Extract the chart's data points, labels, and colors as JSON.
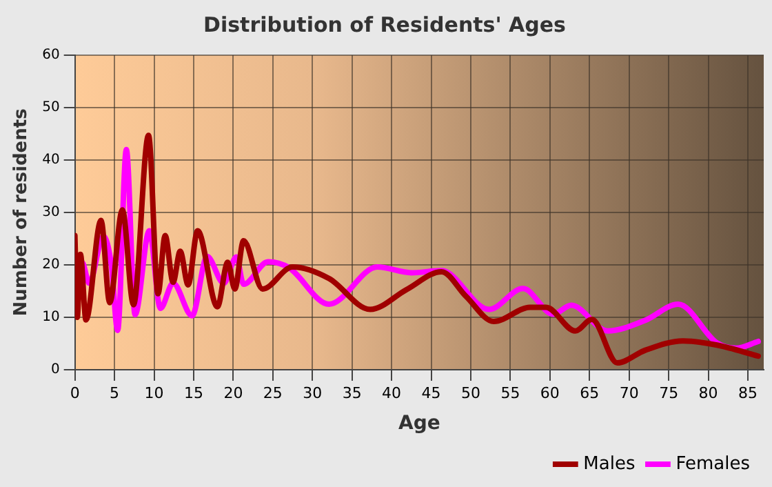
{
  "chart_data": {
    "type": "line",
    "title": "Distribution of Residents' Ages",
    "xlabel": "Age",
    "ylabel": "Number of residents",
    "xlim": [
      0,
      87
    ],
    "xticks": [
      0,
      5,
      10,
      15,
      20,
      25,
      30,
      35,
      40,
      45,
      50,
      55,
      60,
      65,
      70,
      75,
      80,
      85
    ],
    "ylim": [
      0,
      60
    ],
    "yticks": [
      0,
      10,
      20,
      30,
      40,
      50,
      60
    ],
    "grid": true,
    "legend": "bottom right",
    "marker": "none",
    "line_style": "solid",
    "series": [
      {
        "name": "Males",
        "color": "#a00000",
        "x": [
          0,
          0.3,
          0.7,
          1.4,
          3.3,
          4.4,
          6,
          7.4,
          9.3,
          10.5,
          11.4,
          12.4,
          13.3,
          14.3,
          15.5,
          18,
          19.3,
          20.2,
          21.3,
          23.7,
          27.5,
          32.1,
          37.3,
          41.9,
          46.3,
          49.4,
          52.9,
          57.5,
          59.5,
          63.2,
          65.3,
          68.5,
          72,
          76.8,
          81.1,
          86.3
        ],
        "values": [
          25.6,
          10,
          22,
          9.5,
          28.5,
          12.8,
          30.5,
          12.4,
          44.7,
          14.5,
          25.6,
          16.7,
          22.6,
          16.2,
          26.5,
          12,
          20.5,
          15.4,
          24.6,
          15.4,
          19.6,
          17.4,
          11.5,
          15.3,
          18.7,
          14,
          9.2,
          11.9,
          11.9,
          7.4,
          9.6,
          1.3,
          3.7,
          5.5,
          4.7,
          2.6
        ]
      },
      {
        "name": "Females",
        "color": "#ff00ff",
        "x": [
          0.5,
          0.9,
          1.8,
          3.6,
          4.6,
          5.4,
          6.5,
          7.6,
          9.4,
          10.8,
          12.4,
          14.8,
          16.7,
          18.8,
          20.4,
          21.3,
          24.4,
          27,
          32.1,
          38.2,
          42.5,
          46.3,
          52.3,
          56.6,
          60.4,
          62.7,
          67.3,
          72,
          76.2,
          81.1,
          83.5,
          86.3
        ],
        "values": [
          18,
          20.5,
          16.5,
          25.5,
          20,
          7.5,
          42,
          10.5,
          26.5,
          11.7,
          16.5,
          10.3,
          21.6,
          16.5,
          21.5,
          16.3,
          20.6,
          19.5,
          12.5,
          19.6,
          18.5,
          18.9,
          11.5,
          15.5,
          10.6,
          12.3,
          7.4,
          9.4,
          12.5,
          5.1,
          4.1,
          5.4
        ]
      }
    ]
  }
}
